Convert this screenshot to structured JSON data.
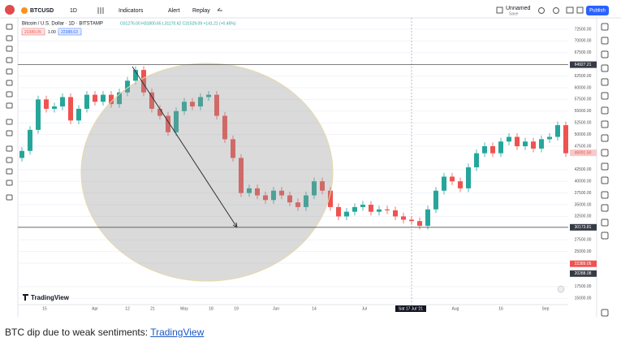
{
  "toolbar": {
    "symbol": "BTCUSD",
    "interval": "1D",
    "indicators": "Indicators",
    "alert": "Alert",
    "replay": "Replay",
    "layout_name": "Unnamed",
    "layout_sub": "Save",
    "publish": "Publish"
  },
  "legend": {
    "title": "Bitcoin / U.S. Dollar · 1D · BITSTAMP",
    "ohlc": "O31276.00 H31800.65 L31170.62 C31529.09 +141.21 (+0.45%)",
    "sell": "22389.05",
    "qty": "1.00",
    "buy": "22388.63"
  },
  "chart_data": {
    "type": "candlestick",
    "open": [
      45000,
      46500,
      51000,
      57500,
      55500,
      56000,
      58000,
      53000,
      55500,
      58500,
      57000,
      58500,
      56500,
      59000,
      61500,
      63800,
      59000,
      55500,
      54000,
      50500,
      55000,
      57000,
      56000,
      58000,
      58500,
      54000,
      49000,
      45000,
      37500,
      38500,
      37000,
      36000,
      38000,
      37000,
      35500,
      34500,
      37000,
      40000,
      38000,
      34500,
      32500,
      33500,
      34500,
      35000,
      33500,
      34000,
      33800,
      32500,
      31800,
      31500,
      30500,
      34000,
      38000,
      41000,
      40000,
      38500,
      43000,
      46000,
      47500,
      46000,
      48500,
      49500,
      47500,
      48500,
      47000,
      49000,
      49500,
      52000
    ],
    "high": [
      47300,
      51800,
      58300,
      58300,
      56800,
      58800,
      58800,
      56300,
      59300,
      59300,
      59300,
      59300,
      59800,
      62300,
      64600,
      64600,
      59800,
      56300,
      54800,
      55800,
      57800,
      57800,
      58800,
      59300,
      59300,
      54800,
      49800,
      45800,
      39300,
      39300,
      37800,
      38800,
      38800,
      37800,
      36300,
      37800,
      40800,
      40800,
      38800,
      35300,
      34300,
      35300,
      35800,
      35800,
      34800,
      34800,
      34600,
      33300,
      32600,
      32300,
      34800,
      38800,
      41800,
      41800,
      40800,
      43800,
      46800,
      48300,
      48300,
      49300,
      50300,
      50300,
      49300,
      49300,
      49800,
      50300,
      52800,
      52800
    ],
    "low": [
      44200,
      45700,
      50200,
      54700,
      54700,
      55200,
      52200,
      52200,
      54700,
      56200,
      56200,
      55700,
      55700,
      58200,
      60700,
      58200,
      54700,
      53200,
      49700,
      49700,
      54200,
      55200,
      55200,
      57200,
      53200,
      48200,
      44200,
      36700,
      36700,
      36200,
      35200,
      35200,
      36200,
      34700,
      33700,
      33700,
      36200,
      37200,
      33700,
      31700,
      31700,
      32700,
      33700,
      32700,
      32700,
      33000,
      31700,
      31000,
      30700,
      29700,
      29700,
      33200,
      37200,
      39200,
      37700,
      37700,
      42200,
      45200,
      45200,
      45200,
      47700,
      46700,
      46700,
      46200,
      46200,
      48200,
      48700,
      45200
    ],
    "close": [
      46500,
      51000,
      57500,
      55500,
      56000,
      58000,
      53000,
      55500,
      58500,
      57000,
      58500,
      56500,
      59000,
      61500,
      63800,
      59000,
      55500,
      54000,
      50500,
      55000,
      57000,
      56000,
      58000,
      58500,
      54000,
      49000,
      45000,
      37500,
      38500,
      37000,
      36000,
      38000,
      37000,
      35500,
      34500,
      37000,
      40000,
      38000,
      34500,
      32500,
      33500,
      34500,
      35000,
      33500,
      34000,
      33800,
      32500,
      31800,
      31500,
      30500,
      34000,
      38000,
      41000,
      40000,
      38500,
      43000,
      46000,
      47500,
      46000,
      48500,
      49500,
      47500,
      48500,
      47000,
      49000,
      49500,
      52000,
      46000
    ],
    "up_color": "#26a69a",
    "down_color": "#ef5350",
    "grid": true,
    "ylim": [
      13650,
      74930
    ],
    "yticks": [
      {
        "value": 72500,
        "label": "72500.00"
      },
      {
        "value": 70000,
        "label": "70000.00"
      },
      {
        "value": 67500,
        "label": "67500.00"
      },
      {
        "value": 62500,
        "label": "62500.00"
      },
      {
        "value": 60000,
        "label": "60000.00"
      },
      {
        "value": 57500,
        "label": "57500.00"
      },
      {
        "value": 55000,
        "label": "55000.00"
      },
      {
        "value": 52500,
        "label": "52500.00"
      },
      {
        "value": 50000,
        "label": "50000.00"
      },
      {
        "value": 47500,
        "label": "47500.00"
      },
      {
        "value": 42500,
        "label": "42500.00"
      },
      {
        "value": 40000,
        "label": "40000.00"
      },
      {
        "value": 37500,
        "label": "37500.00"
      },
      {
        "value": 35000,
        "label": "35000.00"
      },
      {
        "value": 32500,
        "label": "32500.00"
      },
      {
        "value": 27500,
        "label": "27500.00"
      },
      {
        "value": 25000,
        "label": "25000.00"
      },
      {
        "value": 22500,
        "label": "22500.00"
      },
      {
        "value": 17500,
        "label": "17500.00"
      },
      {
        "value": 15000,
        "label": "15000.00"
      }
    ],
    "x_labels": [
      "15",
      "Apr",
      "12",
      "21",
      "May",
      "18",
      "19",
      "Jun",
      "14",
      "Jul",
      "Aug",
      "16",
      "Sep"
    ],
    "crosshair_label": "Sat 17 Jul '21",
    "hlines": [
      {
        "value": 64927.21,
        "label": "64927.21"
      },
      {
        "value": 30173.81,
        "label": "30173.81"
      }
    ],
    "badges": [
      {
        "value": 46091.5,
        "label": "46091.50",
        "color": "#f7c9c9"
      },
      {
        "value": 22389.05,
        "label": "22389.05",
        "color": "#ef5350"
      },
      {
        "value": 20288.08,
        "label": "20288.08",
        "color": "#363a45"
      }
    ],
    "watermark": "TradingView"
  },
  "caption": {
    "text": "BTC dip due to weak sentiments: ",
    "link": "TradingView"
  }
}
